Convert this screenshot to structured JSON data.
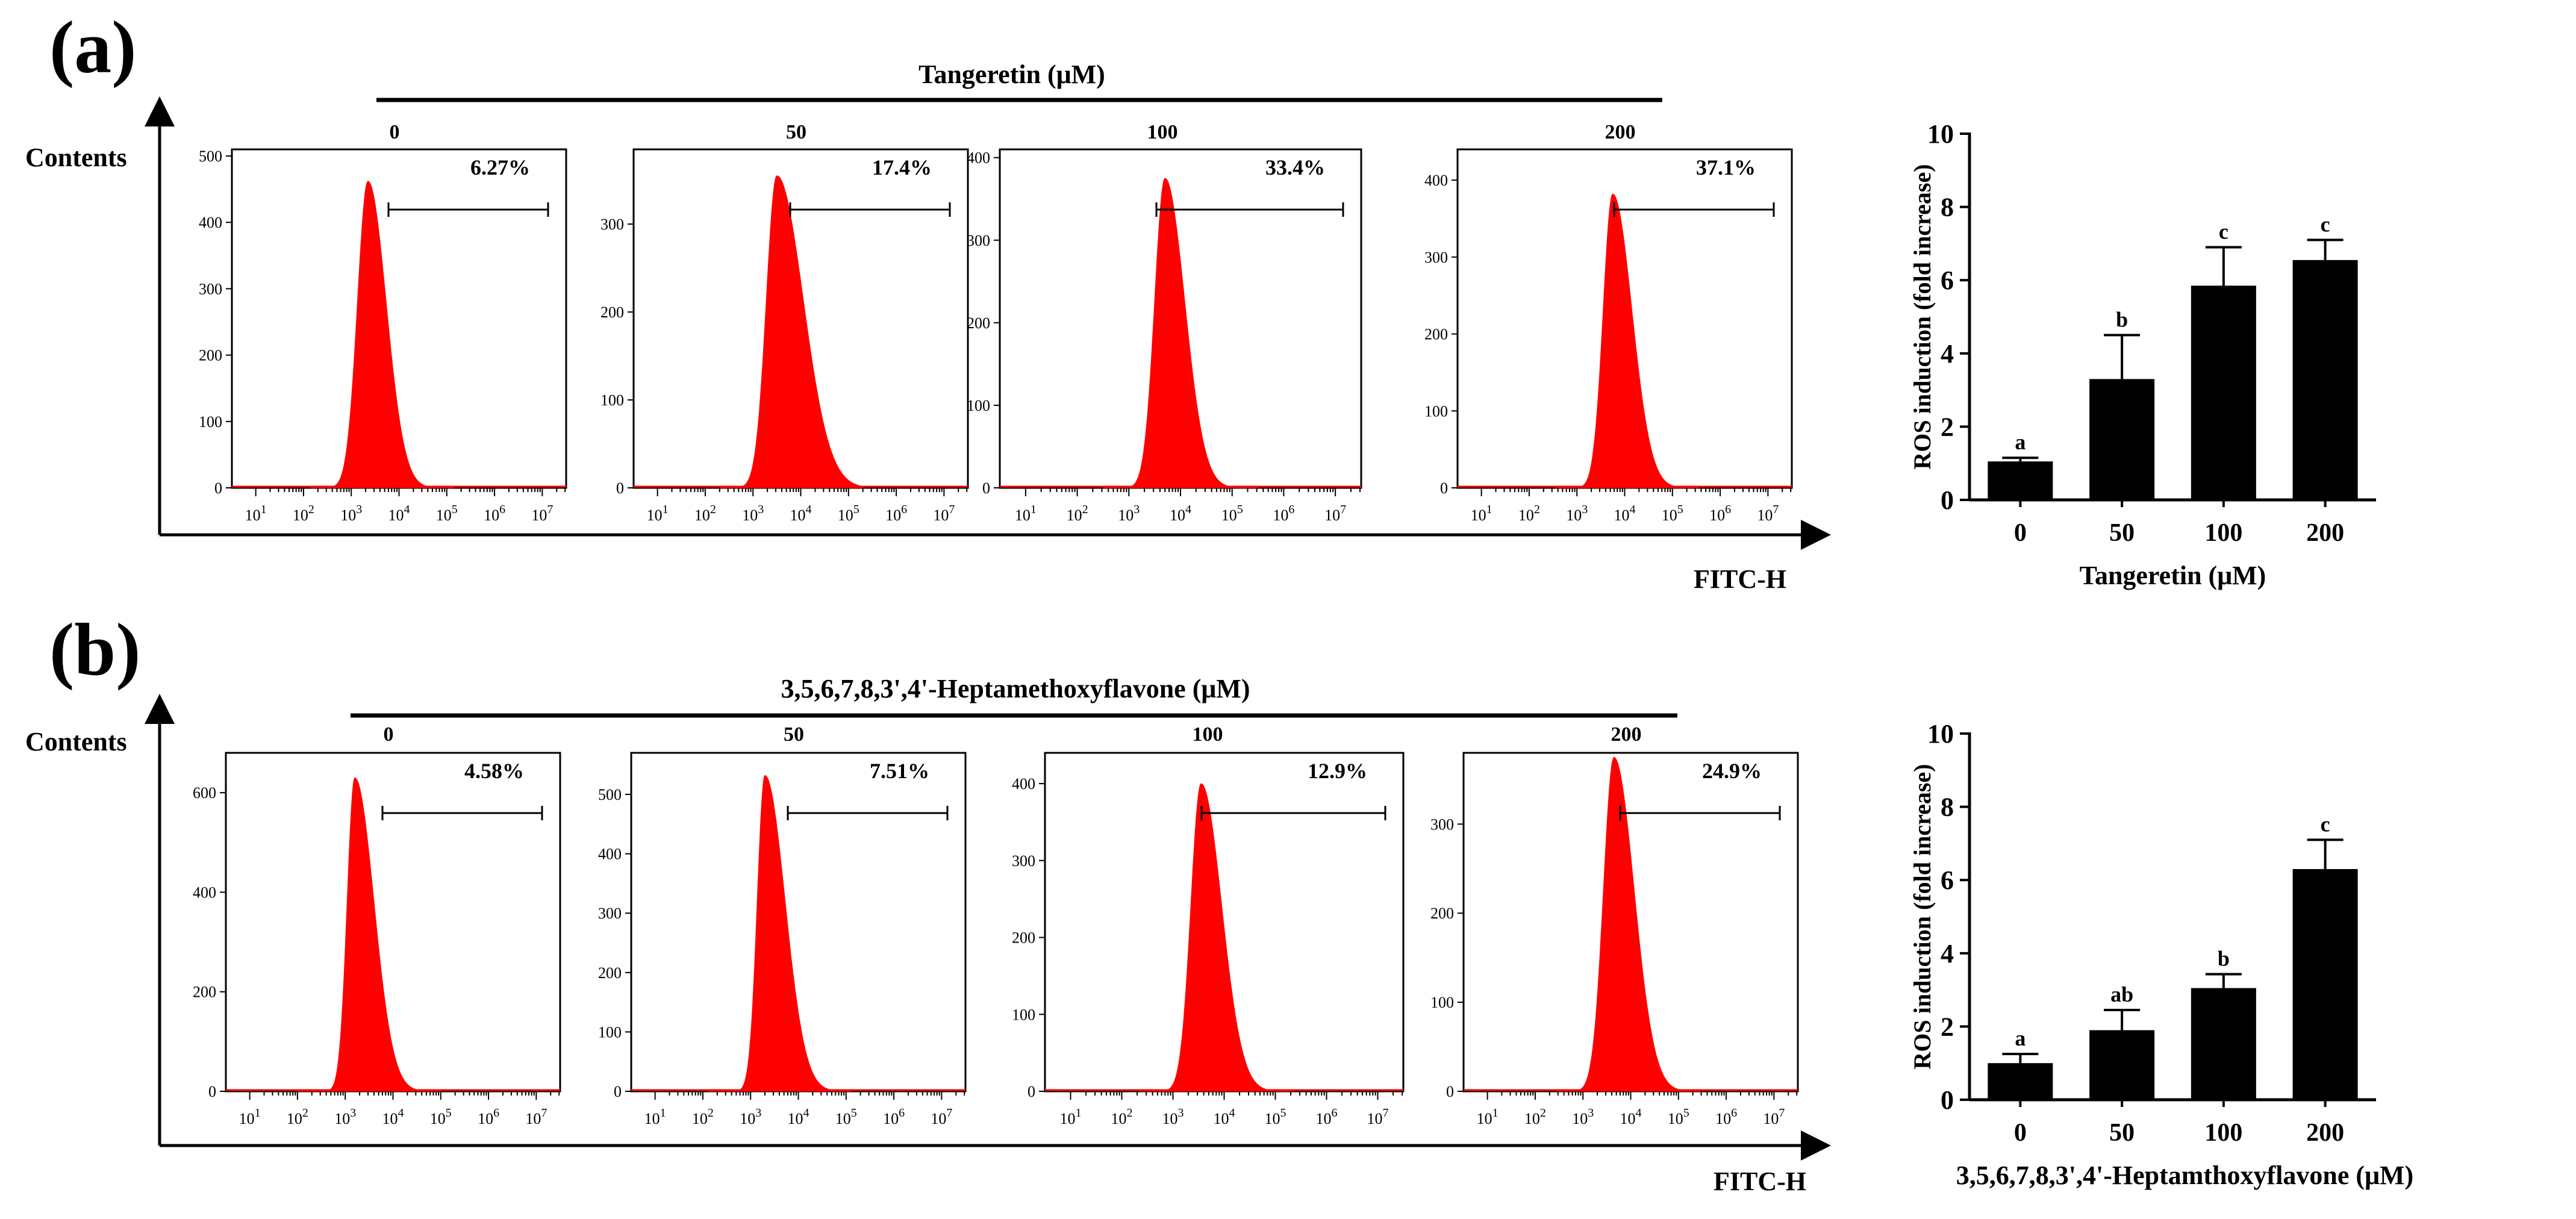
{
  "figure": {
    "panels": [
      {
        "label": "(a)",
        "compound_title": "Tangeretin (μM)",
        "y_label": "Contents",
        "x_label": "FITC-H",
        "histograms": [
          {
            "dose": "0",
            "percent": "6.27%",
            "y_ticks": [
              0,
              100,
              200,
              300,
              400,
              500
            ],
            "y_max": 510,
            "peak_log": 3.35,
            "peak_count": 462,
            "width_left": 0.22,
            "width_right": 0.38
          },
          {
            "dose": "50",
            "percent": "17.4%",
            "y_ticks": [
              0,
              100,
              200,
              300
            ],
            "y_max": 385,
            "peak_log": 3.5,
            "peak_count": 355,
            "width_left": 0.22,
            "width_right": 0.55
          },
          {
            "dose": "100",
            "percent": "33.4%",
            "y_ticks": [
              0,
              100,
              200,
              300,
              400
            ],
            "y_max": 410,
            "peak_log": 3.7,
            "peak_count": 375,
            "width_left": 0.2,
            "width_right": 0.38
          },
          {
            "dose": "200",
            "percent": "37.1%",
            "y_ticks": [
              0,
              100,
              200,
              300,
              400
            ],
            "y_max": 440,
            "peak_log": 3.75,
            "peak_count": 382,
            "width_left": 0.2,
            "width_right": 0.4
          }
        ]
      },
      {
        "label": "(b)",
        "compound_title": "3,5,6,7,8,3',4'-Heptamethoxyflavone (μM)",
        "y_label": "Contents",
        "x_label": "FITC-H",
        "histograms": [
          {
            "dose": "0",
            "percent": "4.58%",
            "y_ticks": [
              0,
              200,
              400,
              600
            ],
            "y_max": 680,
            "peak_log": 3.2,
            "peak_count": 630,
            "width_left": 0.16,
            "width_right": 0.4
          },
          {
            "dose": "50",
            "percent": "7.51%",
            "y_ticks": [
              0,
              100,
              200,
              300,
              400,
              500
            ],
            "y_max": 570,
            "peak_log": 3.3,
            "peak_count": 532,
            "width_left": 0.16,
            "width_right": 0.42
          },
          {
            "dose": "100",
            "percent": "12.9%",
            "y_ticks": [
              0,
              100,
              200,
              300,
              400
            ],
            "y_max": 440,
            "peak_log": 3.55,
            "peak_count": 400,
            "width_left": 0.2,
            "width_right": 0.4
          },
          {
            "dose": "200",
            "percent": "24.9%",
            "y_ticks": [
              0,
              100,
              200,
              300
            ],
            "y_max": 380,
            "peak_log": 3.65,
            "peak_count": 375,
            "width_left": 0.22,
            "width_right": 0.42
          }
        ]
      }
    ],
    "x_tick_labels": [
      "10",
      "10",
      "10",
      "10",
      "10",
      "10",
      "10"
    ],
    "x_tick_exponents": [
      "1",
      "2",
      "3",
      "4",
      "5",
      "6",
      "7"
    ],
    "histogram_color": "#ff0000"
  },
  "chart_data": [
    {
      "type": "bar",
      "title": "",
      "categories": [
        "0",
        "50",
        "100",
        "200"
      ],
      "values": [
        1.05,
        3.3,
        5.85,
        6.55
      ],
      "errors": [
        0.1,
        1.2,
        1.05,
        0.55
      ],
      "significance": [
        "a",
        "b",
        "c",
        "c"
      ],
      "xlabel": "Tangeretin (μM)",
      "ylabel": "ROS induction (fold increase)",
      "ylim": [
        0,
        10
      ],
      "yticks": [
        0,
        2,
        4,
        6,
        8,
        10
      ],
      "bar_color": "#000000"
    },
    {
      "type": "bar",
      "title": "",
      "categories": [
        "0",
        "50",
        "100",
        "200"
      ],
      "values": [
        1.0,
        1.9,
        3.05,
        6.3
      ],
      "errors": [
        0.25,
        0.55,
        0.38,
        0.8
      ],
      "significance": [
        "a",
        "ab",
        "b",
        "c"
      ],
      "xlabel": "3,5,6,7,8,3',4'-Heptamthoxyflavone (μM)",
      "ylabel": "ROS induction (fold increase)",
      "ylim": [
        0,
        10
      ],
      "yticks": [
        0,
        2,
        4,
        6,
        8,
        10
      ],
      "bar_color": "#000000"
    }
  ]
}
